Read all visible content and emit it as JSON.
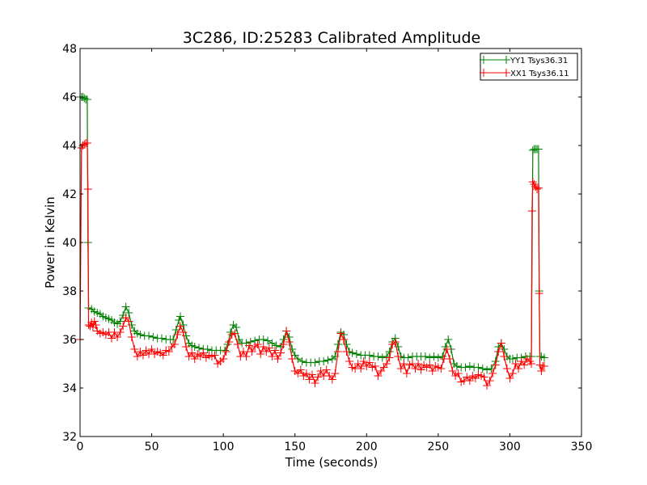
{
  "chart_data": {
    "type": "line",
    "title": "3C286, ID:25283 Calibrated Amplitude",
    "xlabel": "Time (seconds)",
    "ylabel": "Power in Kelvin",
    "xlim": [
      0,
      350
    ],
    "ylim": [
      32,
      48
    ],
    "xticks": [
      "0",
      "50",
      "100",
      "150",
      "200",
      "250",
      "300",
      "350"
    ],
    "yticks": [
      "32",
      "34",
      "36",
      "38",
      "40",
      "42",
      "44",
      "46",
      "48"
    ],
    "legend_position": "top-right",
    "grid": false,
    "series": [
      {
        "name": "YY1 Tsys36.31",
        "color": "#008000",
        "marker": "plus",
        "points": [
          [
            0,
            46.0
          ],
          [
            1,
            46.0
          ],
          [
            2,
            46.0
          ],
          [
            3,
            45.95
          ],
          [
            4,
            45.9
          ],
          [
            5,
            45.9
          ],
          [
            5.5,
            40.0
          ],
          [
            6,
            37.3
          ],
          [
            8,
            37.25
          ],
          [
            10,
            37.15
          ],
          [
            12,
            37.1
          ],
          [
            14,
            37.05
          ],
          [
            16,
            36.95
          ],
          [
            18,
            36.9
          ],
          [
            20,
            36.85
          ],
          [
            22,
            36.8
          ],
          [
            24,
            36.7
          ],
          [
            26,
            36.65
          ],
          [
            28,
            36.75
          ],
          [
            30,
            37.0
          ],
          [
            32,
            37.35
          ],
          [
            34,
            37.1
          ],
          [
            36,
            36.6
          ],
          [
            38,
            36.35
          ],
          [
            40,
            36.25
          ],
          [
            42,
            36.2
          ],
          [
            45,
            36.15
          ],
          [
            48,
            36.15
          ],
          [
            51,
            36.1
          ],
          [
            54,
            36.05
          ],
          [
            57,
            36.05
          ],
          [
            60,
            36.0
          ],
          [
            63,
            36.0
          ],
          [
            65,
            36.0
          ],
          [
            67,
            36.4
          ],
          [
            69,
            36.8
          ],
          [
            70,
            36.95
          ],
          [
            72,
            36.6
          ],
          [
            74,
            36.15
          ],
          [
            76,
            35.85
          ],
          [
            78,
            35.75
          ],
          [
            80,
            35.7
          ],
          [
            83,
            35.65
          ],
          [
            86,
            35.6
          ],
          [
            89,
            35.6
          ],
          [
            92,
            35.55
          ],
          [
            95,
            35.55
          ],
          [
            98,
            35.55
          ],
          [
            101,
            35.55
          ],
          [
            103,
            35.8
          ],
          [
            105,
            36.3
          ],
          [
            107,
            36.6
          ],
          [
            109,
            36.5
          ],
          [
            111,
            36.0
          ],
          [
            113,
            35.85
          ],
          [
            116,
            35.85
          ],
          [
            119,
            35.9
          ],
          [
            122,
            35.95
          ],
          [
            125,
            36.0
          ],
          [
            128,
            36.0
          ],
          [
            131,
            35.95
          ],
          [
            134,
            35.85
          ],
          [
            137,
            35.75
          ],
          [
            140,
            35.7
          ],
          [
            142,
            36.0
          ],
          [
            144,
            36.35
          ],
          [
            146,
            36.1
          ],
          [
            148,
            35.6
          ],
          [
            150,
            35.35
          ],
          [
            152,
            35.2
          ],
          [
            155,
            35.1
          ],
          [
            158,
            35.05
          ],
          [
            161,
            35.05
          ],
          [
            164,
            35.05
          ],
          [
            167,
            35.1
          ],
          [
            170,
            35.1
          ],
          [
            173,
            35.15
          ],
          [
            176,
            35.2
          ],
          [
            178,
            35.3
          ],
          [
            180,
            35.8
          ],
          [
            182,
            36.3
          ],
          [
            184,
            36.2
          ],
          [
            186,
            35.8
          ],
          [
            188,
            35.5
          ],
          [
            190,
            35.45
          ],
          [
            193,
            35.4
          ],
          [
            196,
            35.35
          ],
          [
            199,
            35.35
          ],
          [
            202,
            35.35
          ],
          [
            205,
            35.3
          ],
          [
            208,
            35.3
          ],
          [
            211,
            35.25
          ],
          [
            214,
            35.3
          ],
          [
            216,
            35.5
          ],
          [
            218,
            35.9
          ],
          [
            220,
            36.05
          ],
          [
            222,
            35.7
          ],
          [
            224,
            35.3
          ],
          [
            226,
            35.25
          ],
          [
            229,
            35.25
          ],
          [
            232,
            35.3
          ],
          [
            235,
            35.3
          ],
          [
            238,
            35.3
          ],
          [
            241,
            35.3
          ],
          [
            244,
            35.25
          ],
          [
            247,
            35.3
          ],
          [
            250,
            35.25
          ],
          [
            253,
            35.3
          ],
          [
            255,
            35.7
          ],
          [
            257,
            36.0
          ],
          [
            259,
            35.6
          ],
          [
            261,
            35.0
          ],
          [
            263,
            34.9
          ],
          [
            266,
            34.85
          ],
          [
            269,
            34.85
          ],
          [
            272,
            34.9
          ],
          [
            275,
            34.85
          ],
          [
            278,
            34.85
          ],
          [
            281,
            34.8
          ],
          [
            284,
            34.75
          ],
          [
            287,
            34.8
          ],
          [
            290,
            35.1
          ],
          [
            292,
            35.7
          ],
          [
            294,
            35.85
          ],
          [
            296,
            35.6
          ],
          [
            298,
            35.3
          ],
          [
            300,
            35.2
          ],
          [
            302,
            35.2
          ],
          [
            305,
            35.25
          ],
          [
            308,
            35.25
          ],
          [
            311,
            35.3
          ],
          [
            314,
            35.3
          ],
          [
            315,
            35.3
          ],
          [
            316,
            43.8
          ],
          [
            317,
            43.85
          ],
          [
            318,
            43.85
          ],
          [
            319,
            43.85
          ],
          [
            320,
            43.85
          ],
          [
            320.5,
            38.0
          ],
          [
            321,
            35.3
          ],
          [
            322,
            35.3
          ],
          [
            324,
            35.25
          ]
        ]
      },
      {
        "name": "XX1 Tsys36.11",
        "color": "#ff0000",
        "marker": "plus",
        "points": [
          [
            0,
            36.0
          ],
          [
            1,
            43.9
          ],
          [
            2,
            44.0
          ],
          [
            3,
            44.05
          ],
          [
            4,
            44.1
          ],
          [
            5,
            44.1
          ],
          [
            5.5,
            42.2
          ],
          [
            6,
            36.6
          ],
          [
            7,
            36.55
          ],
          [
            8,
            36.7
          ],
          [
            9,
            36.5
          ],
          [
            10,
            36.75
          ],
          [
            11,
            36.6
          ],
          [
            12,
            36.35
          ],
          [
            14,
            36.25
          ],
          [
            16,
            36.3
          ],
          [
            18,
            36.2
          ],
          [
            20,
            36.3
          ],
          [
            22,
            36.05
          ],
          [
            24,
            36.3
          ],
          [
            26,
            36.1
          ],
          [
            28,
            36.3
          ],
          [
            30,
            36.55
          ],
          [
            32,
            36.9
          ],
          [
            34,
            36.75
          ],
          [
            36,
            36.1
          ],
          [
            38,
            35.6
          ],
          [
            40,
            35.3
          ],
          [
            42,
            35.5
          ],
          [
            44,
            35.35
          ],
          [
            46,
            35.55
          ],
          [
            48,
            35.4
          ],
          [
            50,
            35.6
          ],
          [
            52,
            35.4
          ],
          [
            54,
            35.5
          ],
          [
            56,
            35.45
          ],
          [
            58,
            35.35
          ],
          [
            60,
            35.55
          ],
          [
            62,
            35.5
          ],
          [
            64,
            35.7
          ],
          [
            66,
            35.8
          ],
          [
            68,
            36.2
          ],
          [
            70,
            36.55
          ],
          [
            72,
            36.3
          ],
          [
            74,
            35.7
          ],
          [
            76,
            35.3
          ],
          [
            78,
            35.45
          ],
          [
            80,
            35.2
          ],
          [
            82,
            35.4
          ],
          [
            84,
            35.3
          ],
          [
            86,
            35.45
          ],
          [
            88,
            35.25
          ],
          [
            90,
            35.35
          ],
          [
            92,
            35.3
          ],
          [
            94,
            35.35
          ],
          [
            96,
            35.0
          ],
          [
            98,
            35.1
          ],
          [
            100,
            35.2
          ],
          [
            102,
            35.5
          ],
          [
            104,
            35.9
          ],
          [
            106,
            36.2
          ],
          [
            108,
            36.25
          ],
          [
            110,
            35.8
          ],
          [
            112,
            35.3
          ],
          [
            114,
            35.5
          ],
          [
            116,
            35.3
          ],
          [
            118,
            35.75
          ],
          [
            120,
            35.5
          ],
          [
            122,
            35.7
          ],
          [
            124,
            35.8
          ],
          [
            126,
            35.4
          ],
          [
            128,
            35.7
          ],
          [
            130,
            35.5
          ],
          [
            132,
            35.65
          ],
          [
            134,
            35.3
          ],
          [
            136,
            35.55
          ],
          [
            138,
            35.2
          ],
          [
            140,
            35.45
          ],
          [
            142,
            35.8
          ],
          [
            144,
            36.35
          ],
          [
            146,
            35.9
          ],
          [
            148,
            35.2
          ],
          [
            150,
            34.7
          ],
          [
            152,
            34.6
          ],
          [
            154,
            34.75
          ],
          [
            156,
            34.5
          ],
          [
            158,
            34.6
          ],
          [
            160,
            34.35
          ],
          [
            162,
            34.55
          ],
          [
            164,
            34.2
          ],
          [
            166,
            34.45
          ],
          [
            168,
            34.7
          ],
          [
            170,
            34.5
          ],
          [
            172,
            34.75
          ],
          [
            174,
            34.5
          ],
          [
            176,
            34.35
          ],
          [
            178,
            34.6
          ],
          [
            180,
            35.5
          ],
          [
            182,
            36.25
          ],
          [
            184,
            36.0
          ],
          [
            186,
            35.5
          ],
          [
            188,
            35.1
          ],
          [
            190,
            34.85
          ],
          [
            192,
            34.8
          ],
          [
            194,
            35.0
          ],
          [
            196,
            34.8
          ],
          [
            198,
            35.1
          ],
          [
            200,
            34.9
          ],
          [
            202,
            35.05
          ],
          [
            204,
            34.85
          ],
          [
            206,
            34.9
          ],
          [
            208,
            34.5
          ],
          [
            210,
            34.7
          ],
          [
            212,
            34.85
          ],
          [
            214,
            35.0
          ],
          [
            216,
            35.25
          ],
          [
            218,
            35.8
          ],
          [
            220,
            35.9
          ],
          [
            222,
            35.3
          ],
          [
            224,
            34.8
          ],
          [
            226,
            35.0
          ],
          [
            228,
            34.6
          ],
          [
            230,
            34.95
          ],
          [
            232,
            35.0
          ],
          [
            234,
            34.8
          ],
          [
            236,
            35.0
          ],
          [
            238,
            34.75
          ],
          [
            240,
            34.95
          ],
          [
            242,
            34.85
          ],
          [
            244,
            34.95
          ],
          [
            246,
            34.7
          ],
          [
            248,
            34.9
          ],
          [
            250,
            34.85
          ],
          [
            252,
            34.8
          ],
          [
            254,
            35.2
          ],
          [
            256,
            35.6
          ],
          [
            258,
            35.2
          ],
          [
            260,
            34.7
          ],
          [
            262,
            34.5
          ],
          [
            264,
            34.6
          ],
          [
            266,
            34.25
          ],
          [
            268,
            34.3
          ],
          [
            270,
            34.45
          ],
          [
            272,
            34.3
          ],
          [
            274,
            34.5
          ],
          [
            276,
            34.4
          ],
          [
            278,
            34.55
          ],
          [
            280,
            34.5
          ],
          [
            282,
            34.45
          ],
          [
            284,
            34.1
          ],
          [
            286,
            34.3
          ],
          [
            288,
            34.6
          ],
          [
            290,
            34.95
          ],
          [
            292,
            35.5
          ],
          [
            294,
            35.85
          ],
          [
            296,
            35.3
          ],
          [
            298,
            34.8
          ],
          [
            300,
            34.4
          ],
          [
            302,
            34.6
          ],
          [
            304,
            35.0
          ],
          [
            306,
            34.8
          ],
          [
            308,
            35.1
          ],
          [
            310,
            34.95
          ],
          [
            312,
            35.2
          ],
          [
            314,
            35.1
          ],
          [
            315,
            35.0
          ],
          [
            315.5,
            41.3
          ],
          [
            316,
            42.5
          ],
          [
            317,
            42.4
          ],
          [
            318,
            42.3
          ],
          [
            319,
            42.2
          ],
          [
            320,
            42.25
          ],
          [
            320.5,
            37.9
          ],
          [
            321,
            34.95
          ],
          [
            322,
            34.7
          ],
          [
            323,
            34.9
          ],
          [
            324,
            34.9
          ]
        ]
      }
    ]
  }
}
